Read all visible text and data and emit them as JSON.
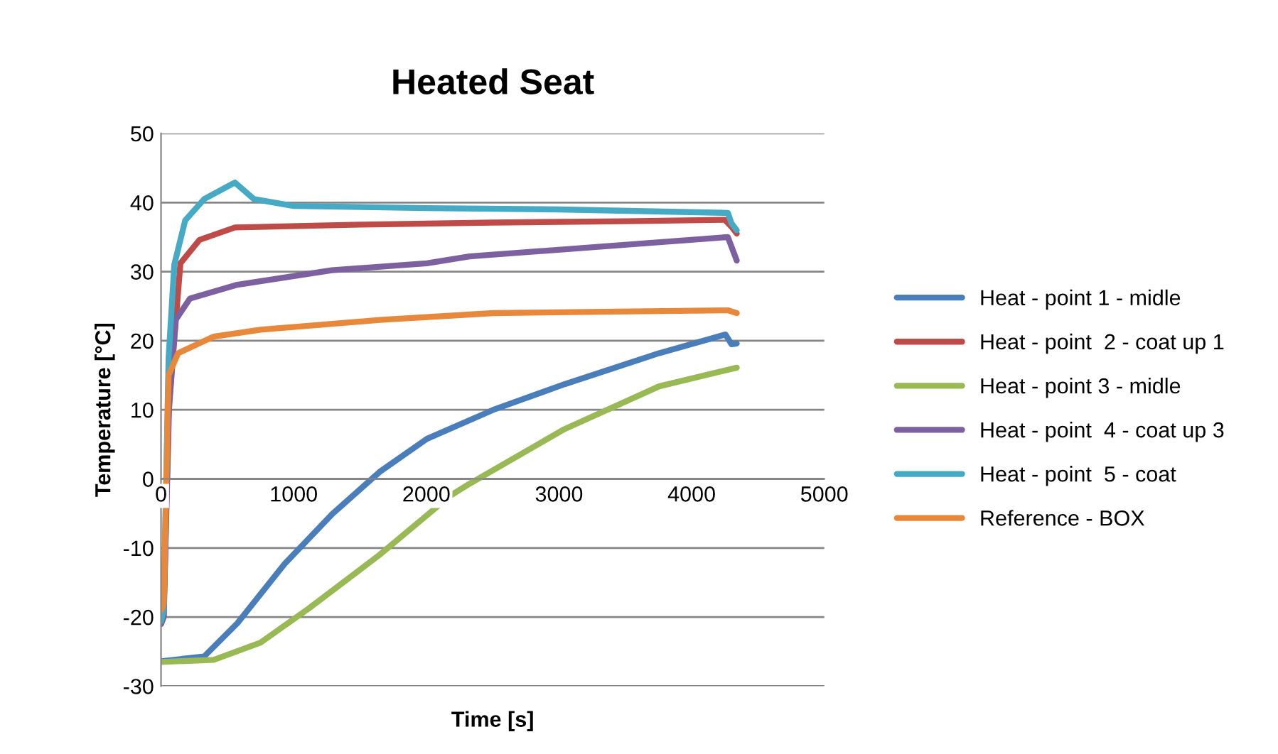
{
  "chart_data": {
    "type": "line",
    "title": "Heated Seat",
    "xlabel": "Time [s]",
    "ylabel": "Temperature [°C]",
    "xlim": [
      0,
      5000
    ],
    "xticks": [
      0,
      1000,
      2000,
      3000,
      4000,
      5000
    ],
    "ylim": [
      -30,
      50
    ],
    "yticks": [
      -30,
      -20,
      -10,
      0,
      10,
      20,
      30,
      40,
      50
    ],
    "grid": "y",
    "legend": "right",
    "marker": "none",
    "line_style": "solid",
    "series": [
      {
        "name": "Heat - point 1 - midle",
        "color": "#4a7ebb",
        "x": [
          0,
          325,
          575,
          932,
          1290,
          1647,
          2004,
          2505,
          3041,
          3755,
          4255,
          4300,
          4340
        ],
        "values": [
          -26.4,
          -25.7,
          -20.9,
          -12.3,
          -5.1,
          1.0,
          5.8,
          10,
          13.7,
          18.2,
          20.9,
          19.5,
          19.6
        ]
      },
      {
        "name": "Heat - point  2 - coat up 1",
        "color": "#be4b48",
        "x": [
          0,
          20,
          57,
          146,
          290,
          557,
          1500,
          2500,
          3500,
          4250,
          4300,
          4340
        ],
        "values": [
          -21,
          -20,
          10,
          31.2,
          34.6,
          36.4,
          36.8,
          37.1,
          37.3,
          37.5,
          36.5,
          35.5
        ]
      },
      {
        "name": "Heat - point 3 - midle",
        "color": "#98b954",
        "x": [
          0,
          397,
          750,
          1111,
          1647,
          2183,
          2326,
          3041,
          3755,
          4340
        ],
        "values": [
          -26.5,
          -26.2,
          -23.7,
          -18.8,
          -11,
          -2.4,
          -0.7,
          7.2,
          13.4,
          16.1
        ]
      },
      {
        "name": "Heat - point  4 - coat up 3",
        "color": "#7d60a0",
        "x": [
          0,
          20,
          60,
          110,
          218,
          575,
          1287,
          2004,
          2326,
          4273,
          4340
        ],
        "values": [
          -21,
          -20,
          10,
          23,
          26.1,
          28.1,
          30.2,
          31.2,
          32.2,
          35,
          31.6
        ]
      },
      {
        "name": "Heat - point  5 - coat",
        "color": "#46aac5",
        "x": [
          0,
          20,
          57,
          100,
          182,
          325,
          557,
          700,
          1000,
          2000,
          3000,
          4273,
          4300,
          4340
        ],
        "values": [
          -20.6,
          -19,
          17.5,
          31,
          37.4,
          40.5,
          42.9,
          40.5,
          39.5,
          39.2,
          39,
          38.5,
          37,
          36
        ]
      },
      {
        "name": "Reference - BOX",
        "color": "#e8883a",
        "x": [
          0,
          20,
          57,
          129,
          397,
          750,
          1647,
          2505,
          4273,
          4340
        ],
        "values": [
          -19,
          -18,
          15,
          18.2,
          20.6,
          21.6,
          23,
          24,
          24.4,
          24
        ]
      }
    ]
  }
}
